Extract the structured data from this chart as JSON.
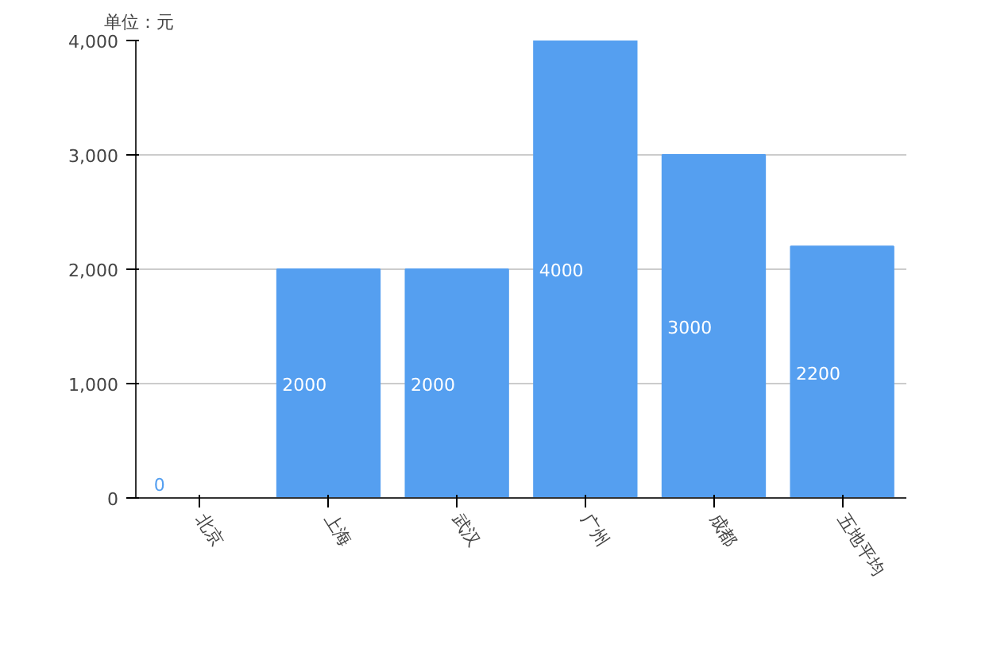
{
  "chart_data": {
    "type": "bar",
    "ylabel": "单位：元",
    "categories": [
      "北京",
      "上海",
      "武汉",
      "广州",
      "成都",
      "五地平均"
    ],
    "values": [
      0,
      2000,
      2000,
      4000,
      3000,
      2200
    ],
    "color": "#559ff0",
    "ylim": [
      0,
      4000
    ],
    "yticks": [
      0,
      {
        "value": 1000,
        "label": "1,000"
      },
      {
        "value": 2000,
        "label": "2,000"
      },
      {
        "value": 3000,
        "label": "3,000"
      },
      {
        "value": 4000,
        "label": "4,000"
      }
    ],
    "grid": "y",
    "data_labels": true
  }
}
